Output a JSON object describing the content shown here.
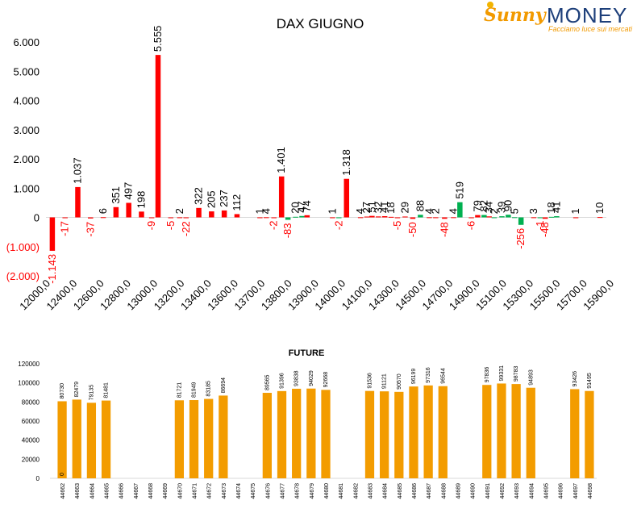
{
  "logo": {
    "brand_a": "Sunny",
    "brand_b": "MONEY",
    "tagline": "Facciamo luce sui mercati"
  },
  "colors": {
    "neg": "#ff0000",
    "pos": "#00b050",
    "future": "#f39c00",
    "text": "#000000"
  },
  "chart_data": [
    {
      "type": "bar",
      "title": "DAX GIUGNO",
      "xlabel": "",
      "ylabel": "",
      "ylim": [
        -2000,
        6000
      ],
      "yticks": [
        "6.000",
        "5.000",
        "4.000",
        "3.000",
        "2.000",
        "1.000",
        "0",
        "(1.000)",
        "(2.000)"
      ],
      "x_tick_labels": [
        "12000,0",
        "12400,0",
        "12600,0",
        "12800,0",
        "13000,0",
        "13200,0",
        "13400,0",
        "13600,0",
        "13700,0",
        "13800,0",
        "13900,0",
        "14000,0",
        "14100,0",
        "14300,0",
        "14500,0",
        "14700,0",
        "14900,0",
        "15100,0",
        "15300,0",
        "15500,0",
        "15700,0",
        "15900,0"
      ],
      "series": [
        {
          "name": "",
          "color": "#ff0000",
          "values": [
            -1143,
            1037,
            6,
            351,
            497,
            198,
            5555,
            2,
            322,
            205,
            237,
            112,
            1,
            4,
            1401,
            74,
            1,
            1318,
            4,
            27,
            51,
            32,
            41,
            18,
            29,
            4,
            2,
            4,
            79,
            34,
            3,
            1,
            10,
            -17,
            -37,
            -9,
            -5,
            -22,
            -2,
            -83,
            -2,
            -5,
            -50,
            -48,
            -6,
            -48
          ]
        },
        {
          "name": "",
          "color": "#00b050",
          "values": [
            20,
            47,
            88,
            519,
            82,
            2,
            39,
            90,
            5,
            18,
            41,
            -256,
            -1
          ]
        }
      ],
      "bars": [
        {
          "pos": 0.5,
          "v": -1143,
          "c": "neg",
          "label": "-1.143"
        },
        {
          "pos": 1.5,
          "v": -17,
          "c": "neg",
          "label": "-17"
        },
        {
          "pos": 2.5,
          "v": 1037,
          "c": "neg",
          "label": "1.037"
        },
        {
          "pos": 3.5,
          "v": -37,
          "c": "neg",
          "label": "-37"
        },
        {
          "pos": 4.5,
          "v": 6,
          "c": "neg",
          "label": "6"
        },
        {
          "pos": 5.5,
          "v": 351,
          "c": "neg",
          "label": "351"
        },
        {
          "pos": 6.5,
          "v": 497,
          "c": "neg",
          "label": "497"
        },
        {
          "pos": 7.5,
          "v": 198,
          "c": "neg",
          "label": "198"
        },
        {
          "pos": 8.3,
          "v": -9,
          "c": "neg",
          "label": "-9"
        },
        {
          "pos": 8.8,
          "v": 5555,
          "c": "neg",
          "label": "5.555"
        },
        {
          "pos": 9.8,
          "v": -5,
          "c": "neg",
          "label": "-5"
        },
        {
          "pos": 10.5,
          "v": 2,
          "c": "neg",
          "label": "2"
        },
        {
          "pos": 11.0,
          "v": -22,
          "c": "neg",
          "label": "-22"
        },
        {
          "pos": 12.0,
          "v": 322,
          "c": "neg",
          "label": "322"
        },
        {
          "pos": 13.0,
          "v": 205,
          "c": "neg",
          "label": "205"
        },
        {
          "pos": 14.0,
          "v": 237,
          "c": "neg",
          "label": "237"
        },
        {
          "pos": 15.0,
          "v": 112,
          "c": "neg",
          "label": "112"
        },
        {
          "pos": 16.8,
          "v": 1,
          "c": "neg",
          "label": "1"
        },
        {
          "pos": 17.3,
          "v": 4,
          "c": "neg",
          "label": "4"
        },
        {
          "pos": 17.9,
          "v": -2,
          "c": "neg",
          "label": "-2"
        },
        {
          "pos": 18.5,
          "v": 1401,
          "c": "neg",
          "label": "1.401"
        },
        {
          "pos": 19.0,
          "v": -83,
          "c": "pos",
          "label": "-83"
        },
        {
          "pos": 19.6,
          "v": 20,
          "c": "pos",
          "label": "20"
        },
        {
          "pos": 20.1,
          "v": 47,
          "c": "pos",
          "label": "47"
        },
        {
          "pos": 20.5,
          "v": 74,
          "c": "neg",
          "label": "74"
        },
        {
          "pos": 22.5,
          "v": 1,
          "c": "neg",
          "label": "1"
        },
        {
          "pos": 23.0,
          "v": -2,
          "c": "pos",
          "label": "-2"
        },
        {
          "pos": 23.6,
          "v": 1318,
          "c": "neg",
          "label": "1.318"
        },
        {
          "pos": 24.7,
          "v": 4,
          "c": "neg",
          "label": "4"
        },
        {
          "pos": 25.2,
          "v": 27,
          "c": "neg",
          "label": "27"
        },
        {
          "pos": 25.6,
          "v": 51,
          "c": "neg",
          "label": "51"
        },
        {
          "pos": 26.1,
          "v": 32,
          "c": "neg",
          "label": "32"
        },
        {
          "pos": 26.6,
          "v": 41,
          "c": "neg",
          "label": "41"
        },
        {
          "pos": 27.1,
          "v": 18,
          "c": "neg",
          "label": "18"
        },
        {
          "pos": 27.6,
          "v": -5,
          "c": "neg",
          "label": "-5"
        },
        {
          "pos": 28.2,
          "v": 29,
          "c": "neg",
          "label": "29"
        },
        {
          "pos": 28.8,
          "v": -50,
          "c": "neg",
          "label": "-50"
        },
        {
          "pos": 29.4,
          "v": 88,
          "c": "pos",
          "label": "88"
        },
        {
          "pos": 30.1,
          "v": 4,
          "c": "neg",
          "label": "4"
        },
        {
          "pos": 30.6,
          "v": 2,
          "c": "neg",
          "label": "2"
        },
        {
          "pos": 31.3,
          "v": -48,
          "c": "neg",
          "label": "-48"
        },
        {
          "pos": 32.0,
          "v": 4,
          "c": "neg",
          "label": "4"
        },
        {
          "pos": 32.5,
          "v": 519,
          "c": "pos",
          "label": "519"
        },
        {
          "pos": 33.4,
          "v": -6,
          "c": "neg",
          "label": "-6"
        },
        {
          "pos": 33.9,
          "v": 79,
          "c": "neg",
          "label": "79"
        },
        {
          "pos": 34.4,
          "v": 82,
          "c": "pos",
          "label": "82"
        },
        {
          "pos": 34.8,
          "v": 34,
          "c": "neg",
          "label": "34"
        },
        {
          "pos": 35.2,
          "v": 2,
          "c": "pos",
          "label": "2"
        },
        {
          "pos": 35.8,
          "v": 39,
          "c": "pos",
          "label": "39"
        },
        {
          "pos": 36.3,
          "v": 90,
          "c": "pos",
          "label": "90"
        },
        {
          "pos": 36.8,
          "v": 5,
          "c": "pos",
          "label": "5"
        },
        {
          "pos": 37.3,
          "v": -256,
          "c": "pos",
          "label": "-256"
        },
        {
          "pos": 38.3,
          "v": 3,
          "c": "neg",
          "label": "3"
        },
        {
          "pos": 38.8,
          "v": -1,
          "c": "pos",
          "label": "-1"
        },
        {
          "pos": 39.2,
          "v": -48,
          "c": "neg",
          "label": "-48"
        },
        {
          "pos": 39.7,
          "v": 18,
          "c": "pos",
          "label": "18"
        },
        {
          "pos": 40.1,
          "v": 41,
          "c": "pos",
          "label": "41"
        },
        {
          "pos": 41.6,
          "v": 1,
          "c": "neg",
          "label": "1"
        },
        {
          "pos": 43.5,
          "v": 10,
          "c": "neg",
          "label": "10"
        }
      ]
    },
    {
      "type": "bar",
      "title": "FUTURE",
      "xlabel": "",
      "ylabel": "",
      "ylim": [
        0,
        120000
      ],
      "yticks": [
        "120000",
        "100000",
        "80000",
        "60000",
        "40000",
        "20000",
        "0"
      ],
      "categories": [
        "44662",
        "44663",
        "44664",
        "44665",
        "44666",
        "44667",
        "44668",
        "44669",
        "44670",
        "44671",
        "44672",
        "44673",
        "44674",
        "44675",
        "44676",
        "44677",
        "44678",
        "44679",
        "44680",
        "44681",
        "44682",
        "44683",
        "44684",
        "44685",
        "44686",
        "44687",
        "44688",
        "44689",
        "44690",
        "44691",
        "44692",
        "44693",
        "44694",
        "44695",
        "44696",
        "44697",
        "44698"
      ],
      "values": [
        80730,
        82479,
        79135,
        81481,
        null,
        null,
        null,
        null,
        81721,
        81949,
        83185,
        86694,
        null,
        null,
        89565,
        91396,
        93838,
        94029,
        92668,
        null,
        null,
        91536,
        91121,
        90570,
        96199,
        97316,
        96544,
        null,
        null,
        97836,
        99331,
        98783,
        94893,
        null,
        null,
        93426,
        91495
      ],
      "series_name": "",
      "extra_labels": [
        {
          "category": "44662",
          "label": "0"
        }
      ]
    }
  ]
}
